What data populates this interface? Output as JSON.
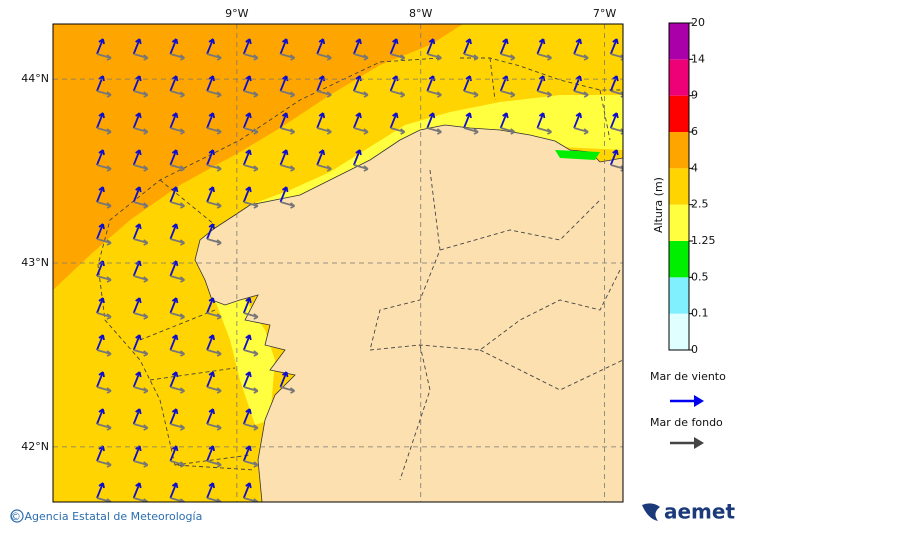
{
  "map": {
    "lonticks": [
      {
        "value": -9,
        "label": "9°W"
      },
      {
        "value": -8,
        "label": "8°W"
      },
      {
        "value": -7,
        "label": "7°W"
      }
    ],
    "latticks": [
      {
        "value": 44,
        "label": "44°N"
      },
      {
        "value": 43,
        "label": "43°N"
      },
      {
        "value": 42,
        "label": "42°N"
      }
    ],
    "xlim": [
      -10,
      -6.9
    ],
    "ylim": [
      41.7,
      44.3
    ]
  },
  "colorbar": {
    "label": "Altura (m)",
    "levels": [
      0,
      0.1,
      0.5,
      1.25,
      2.5,
      4,
      6,
      9,
      14,
      20
    ],
    "colors": [
      "#e0ffff",
      "#80f0ff",
      "#00ee00",
      "#ffff40",
      "#ffd400",
      "#ffa500",
      "#ff0000",
      "#ee0077",
      "#aa00aa"
    ]
  },
  "legend": {
    "wind": "Mar de viento",
    "swell": "Mar de fondo"
  },
  "footer": {
    "credit": "© Agencia Estatal de Meteorología",
    "logo": "aemet"
  }
}
